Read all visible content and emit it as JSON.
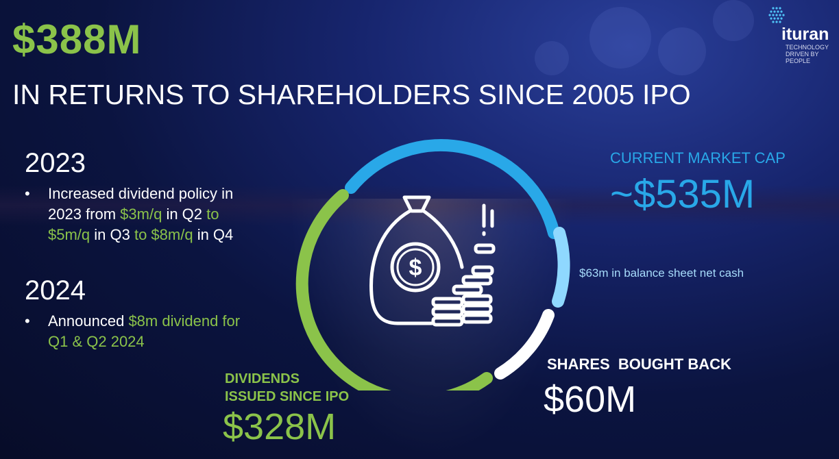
{
  "headline": {
    "amount": "$388M",
    "subtitle": "IN RETURNS TO SHAREHOLDERS SINCE 2005 IPO"
  },
  "logo": {
    "wordmark": "ituran",
    "tagline_lines": [
      "TECHNOLOGY",
      "DRIVEN BY",
      "PEOPLE"
    ]
  },
  "sections": [
    {
      "year": "2023",
      "bullet": "•",
      "lines": [
        [
          {
            "t": "Increased dividend policy in",
            "hl": false
          }
        ],
        [
          {
            "t": "2023 from ",
            "hl": false
          },
          {
            "t": "$3m/q",
            "hl": true
          },
          {
            "t": " in Q2 ",
            "hl": false
          },
          {
            "t": "to",
            "hl": true
          }
        ],
        [
          {
            "t": "$5m/q",
            "hl": true
          },
          {
            "t": " in Q3 ",
            "hl": false
          },
          {
            "t": "to $8m/q",
            "hl": true
          },
          {
            "t": " in Q4",
            "hl": false
          }
        ]
      ]
    },
    {
      "year": "2024",
      "bullet": "•",
      "lines": [
        [
          {
            "t": "Announced ",
            "hl": false
          },
          {
            "t": "$8m dividend for",
            "hl": true
          }
        ],
        [
          {
            "t": "Q1 & Q2 2024",
            "hl": true
          }
        ]
      ]
    }
  ],
  "market_cap": {
    "label": "CURRENT MARKET CAP",
    "value": "~$535M",
    "net_cash_note": "$63m in balance sheet net cash"
  },
  "buyback": {
    "label": "SHARES  BOUGHT BACK",
    "value": "$60M"
  },
  "dividends": {
    "label_lines": [
      "DIVIDENDS",
      "ISSUED SINCE IPO"
    ],
    "value": "$328M"
  },
  "ring_segments": [
    {
      "name": "market-cap",
      "color": "#29a8e8"
    },
    {
      "name": "net-cash",
      "color": "#8fd8ff"
    },
    {
      "name": "buyback",
      "color": "#ffffff"
    },
    {
      "name": "dividends",
      "color": "#8bc34a"
    }
  ],
  "colors": {
    "accent_green": "#8bc34a",
    "accent_blue": "#29a8e8",
    "light_blue": "#a7dcfb",
    "background": "#0b1440"
  },
  "center_icon": "money-bag-with-coin-stacks-icon"
}
